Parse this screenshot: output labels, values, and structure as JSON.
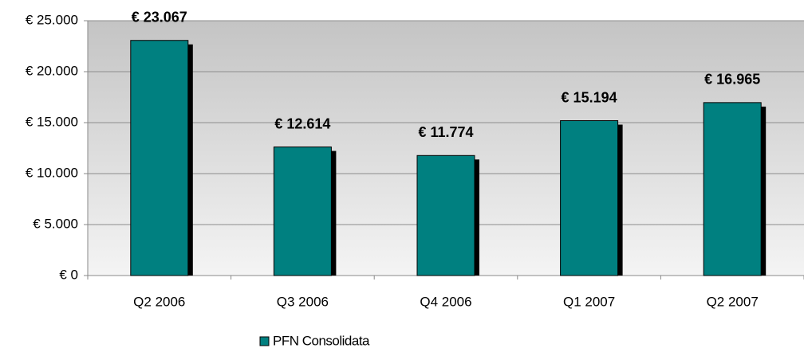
{
  "chart_data": {
    "type": "bar",
    "categories": [
      "Q2 2006",
      "Q3 2006",
      "Q4 2006",
      "Q1 2007",
      "Q2 2007"
    ],
    "series": [
      {
        "name": "PFN Consolidata",
        "color": "#008080",
        "values": [
          23067,
          12614,
          11774,
          15194,
          16965
        ],
        "value_labels": [
          "€ 23.067",
          "€ 12.614",
          "€ 11.774",
          "€ 15.194",
          "€ 16.965"
        ]
      }
    ],
    "ylim": [
      0,
      25000
    ],
    "yticks": [
      {
        "value": 0,
        "label": "€ 0"
      },
      {
        "value": 5000,
        "label": "€ 5.000"
      },
      {
        "value": 10000,
        "label": "€ 10.000"
      },
      {
        "value": 15000,
        "label": "€ 15.000"
      },
      {
        "value": 20000,
        "label": "€ 20.000"
      },
      {
        "value": 25000,
        "label": "€ 25.000"
      }
    ],
    "grid": true,
    "legend": "bottom"
  }
}
